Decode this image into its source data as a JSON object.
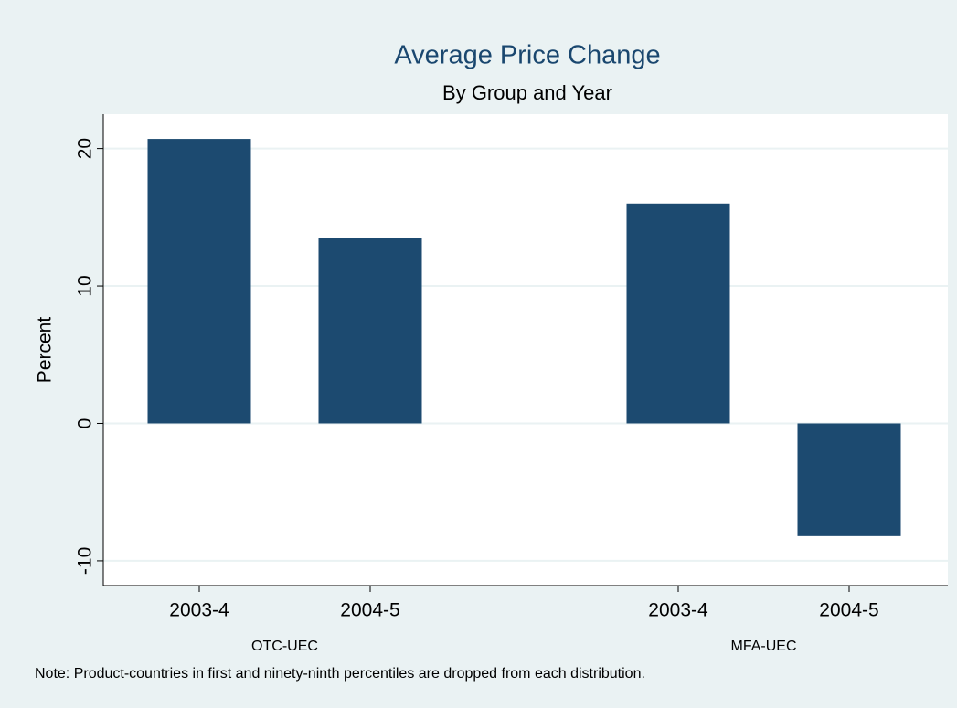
{
  "chart_data": {
    "type": "bar",
    "title": "Average Price Change",
    "subtitle": "By Group and Year",
    "y_label": "Percent",
    "groups": [
      {
        "name": "OTC-UEC",
        "categories": [
          "2003-4",
          "2004-5"
        ],
        "values": [
          20.7,
          13.5
        ]
      },
      {
        "name": "MFA-UEC",
        "categories": [
          "2003-4",
          "2004-5"
        ],
        "values": [
          16.0,
          -8.2
        ]
      }
    ],
    "color": "#1c4a70",
    "ylim": [
      -11.8,
      22.5
    ],
    "yticks": [
      -10,
      0,
      10,
      20
    ],
    "grid": true,
    "note": "Note: Product-countries in first and ninety-ninth percentiles are dropped from each distribution."
  }
}
